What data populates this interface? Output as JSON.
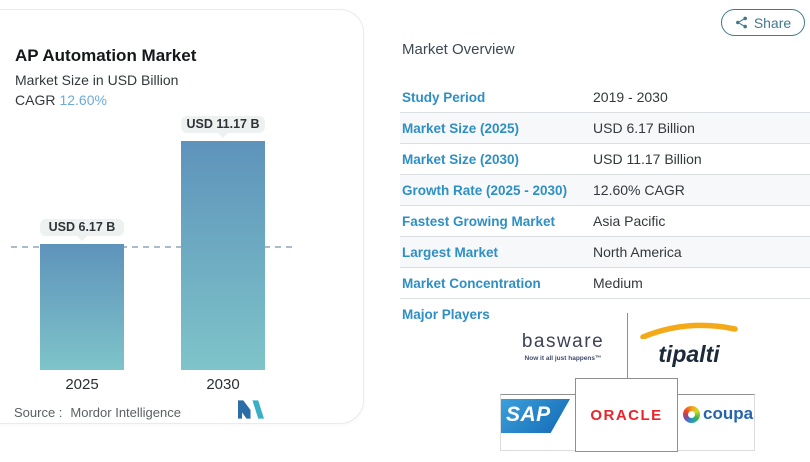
{
  "share_button": {
    "label": "Share"
  },
  "chart_card": {
    "title": "AP Automation Market",
    "subtitle": "Market Size in USD Billion",
    "cagr_label": "CAGR",
    "cagr_value": "12.60%",
    "source_label": "Source :",
    "source_name": "Mordor Intelligence"
  },
  "chart_data": {
    "type": "bar",
    "title": "AP Automation Market",
    "ylabel": "Market Size in USD Billion",
    "unit": "USD Billion",
    "cagr": "12.60%",
    "categories": [
      "2025",
      "2030"
    ],
    "values": [
      6.17,
      11.17
    ],
    "value_labels": [
      "USD 6.17 B",
      "USD 11.17 B"
    ],
    "ylim": [
      0,
      12.4
    ],
    "reference_line": {
      "y": 6.17,
      "style": "dashed"
    },
    "grid": "off",
    "legend": "none",
    "bar_gradient": [
      "#5e93bb",
      "#7ec4c9"
    ]
  },
  "overview": {
    "heading": "Market Overview",
    "rows": [
      {
        "label": "Study Period",
        "value": "2019 - 2030"
      },
      {
        "label": "Market Size (2025)",
        "value": "USD 6.17 Billion"
      },
      {
        "label": "Market Size (2030)",
        "value": "USD 11.17 Billion"
      },
      {
        "label": "Growth Rate (2025 - 2030)",
        "value": "12.60% CAGR"
      },
      {
        "label": "Fastest Growing Market",
        "value": "Asia Pacific"
      },
      {
        "label": "Largest Market",
        "value": "North America"
      },
      {
        "label": "Market Concentration",
        "value": "Medium"
      }
    ],
    "major_players": {
      "label": "Major Players",
      "players": [
        {
          "name": "basware",
          "tagline": "Now it all just happens™"
        },
        {
          "name": "tipalti"
        },
        {
          "name": "SAP"
        },
        {
          "name": "ORACLE"
        },
        {
          "name": "coupa"
        }
      ]
    }
  },
  "colors": {
    "label_blue": "#2e8fc5",
    "value_text": "#34383c",
    "cagr_light_blue": "#6fa9d8",
    "share_teal": "#41798e",
    "bar_top": "#5e93bb",
    "bar_bottom": "#7ec4c9",
    "dashed_line": "#a8bccb",
    "oracle_red": "#e8242c",
    "sap_blue": "#1268b3",
    "coupa_blue": "#2565ae",
    "tipalti_swoosh_yellow": "#f3a918"
  }
}
